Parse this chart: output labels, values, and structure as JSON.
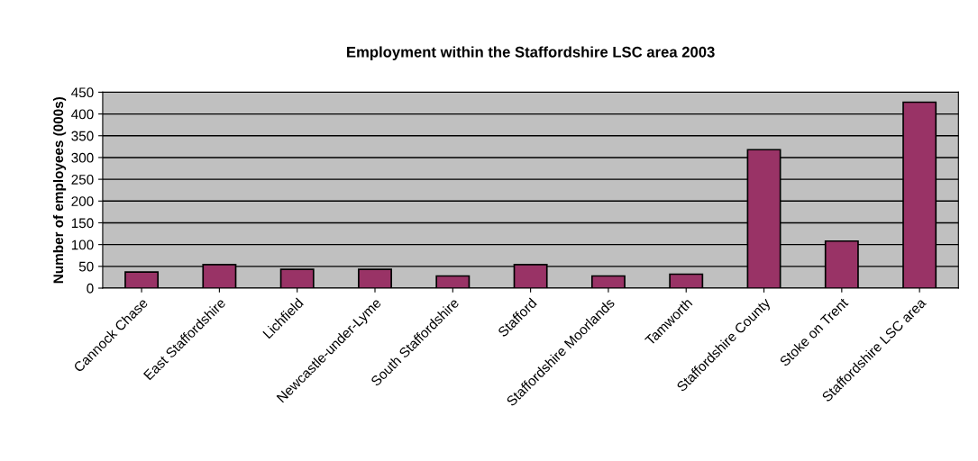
{
  "chart_data": {
    "type": "bar",
    "title": "Employment within the Staffordshire LSC area 2003",
    "ylabel": "Number of employees (000s)",
    "categories": [
      "Cannock Chase",
      "East Staffordshire",
      "Lichfield",
      "Newcastle-under-Lyme",
      "South Staffordshire",
      "Stafford",
      "Staffordshire Moorlands",
      "Tamworth",
      "Staffordshire County",
      "Stoke on Trent",
      "Staffordshire LSC area"
    ],
    "values": [
      37,
      54,
      43,
      43,
      28,
      54,
      28,
      32,
      318,
      108,
      427
    ],
    "color": "#993366",
    "ylim": [
      0,
      450
    ],
    "yticks": [
      0,
      50,
      100,
      150,
      200,
      250,
      300,
      350,
      400,
      450
    ],
    "grid": "y",
    "legend": false
  }
}
